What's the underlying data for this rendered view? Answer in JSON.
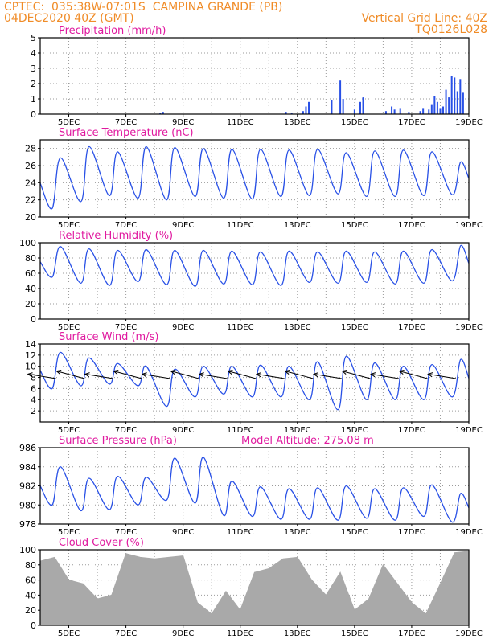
{
  "header": {
    "line1": "CPTEC:  035:38W-07:01S  CAMPINA GRANDE (PB)",
    "line2": "04DEC2020 40Z (GMT)",
    "grid_note": "Vertical Grid Line: 40Z",
    "code": "TQ0126L028"
  },
  "colors": {
    "header": "#f08c28",
    "panel_title": "#e0199f",
    "series": "#2850e6",
    "wind_arrow": "#000000",
    "cloud_fill": "#a9a9a9",
    "grid": "#9a9a9a"
  },
  "chart_data": [
    {
      "type": "bar",
      "title": "Precipitation (mm/h)",
      "x_ticks": [
        "5DEC",
        "7DEC",
        "9DEC",
        "11DEC",
        "13DEC",
        "15DEC",
        "17DEC",
        "19DEC"
      ],
      "x_range_days": [
        4.0,
        19.0
      ],
      "ylim": [
        0,
        5
      ],
      "y_ticks": [
        0,
        1,
        2,
        3,
        4,
        5
      ],
      "grid": true,
      "x": [
        8.2,
        8.3,
        12.6,
        12.8,
        13.2,
        13.3,
        13.4,
        14.2,
        14.5,
        14.6,
        15.0,
        15.2,
        15.3,
        16.1,
        16.3,
        16.4,
        16.6,
        16.9,
        17.3,
        17.4,
        17.6,
        17.7,
        17.8,
        17.9,
        18.0,
        18.1,
        18.2,
        18.3,
        18.4,
        18.5,
        18.6,
        18.7,
        18.8
      ],
      "values": [
        0.1,
        0.15,
        0.15,
        0.1,
        0.2,
        0.5,
        0.8,
        0.9,
        2.2,
        1.0,
        0.3,
        0.8,
        1.1,
        0.2,
        0.5,
        0.3,
        0.4,
        0.15,
        0.2,
        0.4,
        0.3,
        0.6,
        1.2,
        0.8,
        0.4,
        0.5,
        1.6,
        1.1,
        2.5,
        2.4,
        1.5,
        2.3,
        1.4
      ]
    },
    {
      "type": "line",
      "title": "Surface Temperature (nC)",
      "x_ticks": [
        "5DEC",
        "7DEC",
        "9DEC",
        "11DEC",
        "13DEC",
        "15DEC",
        "17DEC",
        "19DEC"
      ],
      "x_range_days": [
        4.0,
        19.0
      ],
      "ylim": [
        20,
        29
      ],
      "y_ticks": [
        20,
        22,
        24,
        26,
        28
      ],
      "grid": true,
      "daily_max": [
        26.9,
        28.2,
        27.6,
        28.2,
        28.1,
        28.0,
        27.9,
        27.9,
        27.8,
        27.9,
        27.5,
        27.7,
        27.8,
        27.6,
        26.4
      ],
      "daily_min": [
        21.0,
        21.8,
        22.5,
        22.2,
        22.0,
        22.4,
        22.2,
        22.1,
        22.4,
        22.5,
        22.7,
        22.4,
        22.4,
        22.5,
        22.6
      ]
    },
    {
      "type": "line",
      "title": "Relative Humidity (%)",
      "x_ticks": [
        "5DEC",
        "7DEC",
        "9DEC",
        "11DEC",
        "13DEC",
        "15DEC",
        "17DEC",
        "19DEC"
      ],
      "x_range_days": [
        4.0,
        19.0
      ],
      "ylim": [
        0,
        100
      ],
      "y_ticks": [
        0,
        20,
        40,
        60,
        80,
        100
      ],
      "grid": true,
      "daily_max": [
        95,
        92,
        90,
        91,
        90,
        90,
        89,
        88,
        89,
        88,
        89,
        88,
        89,
        91,
        96
      ],
      "daily_min": [
        55,
        47,
        44,
        49,
        45,
        43,
        46,
        45,
        44,
        48,
        47,
        48,
        46,
        47,
        50
      ]
    },
    {
      "type": "line",
      "title": "Surface Wind (m/s)",
      "x_ticks": [
        "5DEC",
        "7DEC",
        "9DEC",
        "11DEC",
        "13DEC",
        "15DEC",
        "17DEC",
        "19DEC"
      ],
      "x_range_days": [
        4.0,
        19.0
      ],
      "ylim": [
        0,
        14
      ],
      "y_ticks": [
        2,
        4,
        6,
        8,
        10,
        12,
        14
      ],
      "grid": true,
      "daily_max": [
        12.5,
        11.5,
        10.5,
        10.0,
        9.5,
        10.0,
        10.0,
        10.2,
        10.0,
        10.8,
        11.8,
        10.6,
        10.0,
        10.3,
        11.2
      ],
      "daily_min": [
        6.0,
        6.5,
        6.8,
        6.5,
        2.8,
        4.5,
        5.0,
        4.5,
        4.5,
        4.0,
        2.2,
        4.0,
        4.0,
        4.0,
        4.5
      ],
      "arrow_direction_deg": [
        155,
        150,
        148,
        145,
        150,
        165,
        160,
        150,
        155,
        160,
        158,
        150,
        155,
        150,
        160
      ]
    },
    {
      "type": "line",
      "title": "Surface Pressure (hPa)",
      "annotation": "Model Altitude: 275.08 m",
      "x_ticks": [
        "5DEC",
        "7DEC",
        "9DEC",
        "11DEC",
        "13DEC",
        "15DEC",
        "17DEC",
        "19DEC"
      ],
      "x_range_days": [
        4.0,
        19.0
      ],
      "ylim": [
        978,
        986
      ],
      "y_ticks": [
        978,
        980,
        982,
        984,
        986
      ],
      "grid": true,
      "daily_max": [
        984.0,
        982.8,
        983.0,
        982.9,
        984.9,
        985.0,
        982.5,
        981.9,
        981.7,
        981.8,
        982.0,
        981.7,
        981.8,
        982.1,
        981.2
      ],
      "daily_min": [
        980.0,
        979.4,
        979.5,
        980.0,
        980.5,
        980.2,
        978.9,
        978.8,
        978.5,
        978.5,
        978.4,
        978.6,
        978.4,
        978.8,
        978.2
      ]
    },
    {
      "type": "area",
      "title": "Cloud Cover (%)",
      "x_ticks": [
        "5DEC",
        "7DEC",
        "9DEC",
        "11DEC",
        "13DEC",
        "15DEC",
        "17DEC",
        "19DEC"
      ],
      "x_range_days": [
        4.0,
        19.0
      ],
      "ylim": [
        0,
        100
      ],
      "y_ticks": [
        0,
        20,
        40,
        60,
        80,
        100
      ],
      "grid": true,
      "days": [
        4.0,
        4.5,
        5.0,
        5.5,
        6.0,
        6.5,
        7.0,
        7.5,
        8.0,
        8.5,
        9.0,
        9.5,
        10.0,
        10.5,
        11.0,
        11.5,
        12.0,
        12.5,
        13.0,
        13.5,
        14.0,
        14.5,
        15.0,
        15.5,
        16.0,
        16.5,
        17.0,
        17.5,
        18.0,
        18.5,
        19.0
      ],
      "values": [
        85,
        90,
        60,
        55,
        35,
        40,
        95,
        90,
        88,
        90,
        92,
        30,
        15,
        45,
        20,
        70,
        75,
        88,
        90,
        60,
        40,
        70,
        20,
        35,
        80,
        55,
        30,
        15,
        55,
        96,
        98
      ]
    }
  ]
}
